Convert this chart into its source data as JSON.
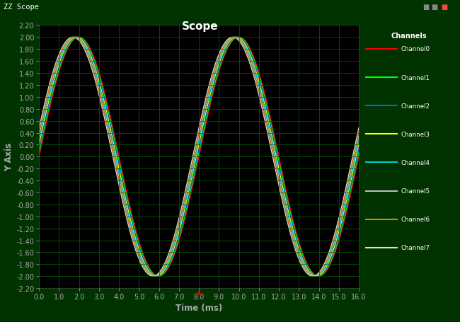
{
  "title": "Scope",
  "xlabel": "Time (ms)",
  "ylabel": "Y Axis",
  "xlim": [
    0.0,
    16.0
  ],
  "ylim": [
    -2.2,
    2.2
  ],
  "xticks": [
    0.0,
    1.0,
    2.0,
    3.0,
    4.0,
    5.0,
    6.0,
    7.0,
    8.0,
    9.0,
    10.0,
    11.0,
    12.0,
    13.0,
    14.0,
    15.0,
    16.0
  ],
  "yticks": [
    -2.2,
    -2.0,
    -1.8,
    -1.6,
    -1.4,
    -1.2,
    -1.0,
    -0.8,
    -0.6,
    -0.4,
    -0.2,
    0.0,
    0.2,
    0.4,
    0.6,
    0.8,
    1.0,
    1.2,
    1.4,
    1.6,
    1.8,
    2.0,
    2.2
  ],
  "bg_color": "#000000",
  "outer_bg_color": "#003300",
  "title_bar_color": "#000080",
  "grid_color": "#006600",
  "title_color": "#ffffff",
  "tick_color": "#aaaaaa",
  "label_color": "#aaaaaa",
  "channels": [
    {
      "name": "Channel0",
      "color": "#ff0000",
      "phase_deg": 0.0
    },
    {
      "name": "Channel1",
      "color": "#00ff00",
      "phase_deg": 2.0
    },
    {
      "name": "Channel2",
      "color": "#0066ff",
      "phase_deg": 4.0
    },
    {
      "name": "Channel3",
      "color": "#ffff00",
      "phase_deg": 6.0
    },
    {
      "name": "Channel4",
      "color": "#00cccc",
      "phase_deg": 8.0
    },
    {
      "name": "Channel5",
      "color": "#bbbbbb",
      "phase_deg": 10.0
    },
    {
      "name": "Channel6",
      "color": "#cc8800",
      "phase_deg": 12.0
    },
    {
      "name": "Channel7",
      "color": "#dddddd",
      "phase_deg": 14.0
    }
  ],
  "amplitude": 2.0,
  "period_ms": 8.0,
  "red_marker_x": 8.0,
  "figsize": [
    6.5,
    4.56
  ],
  "dpi": 100
}
